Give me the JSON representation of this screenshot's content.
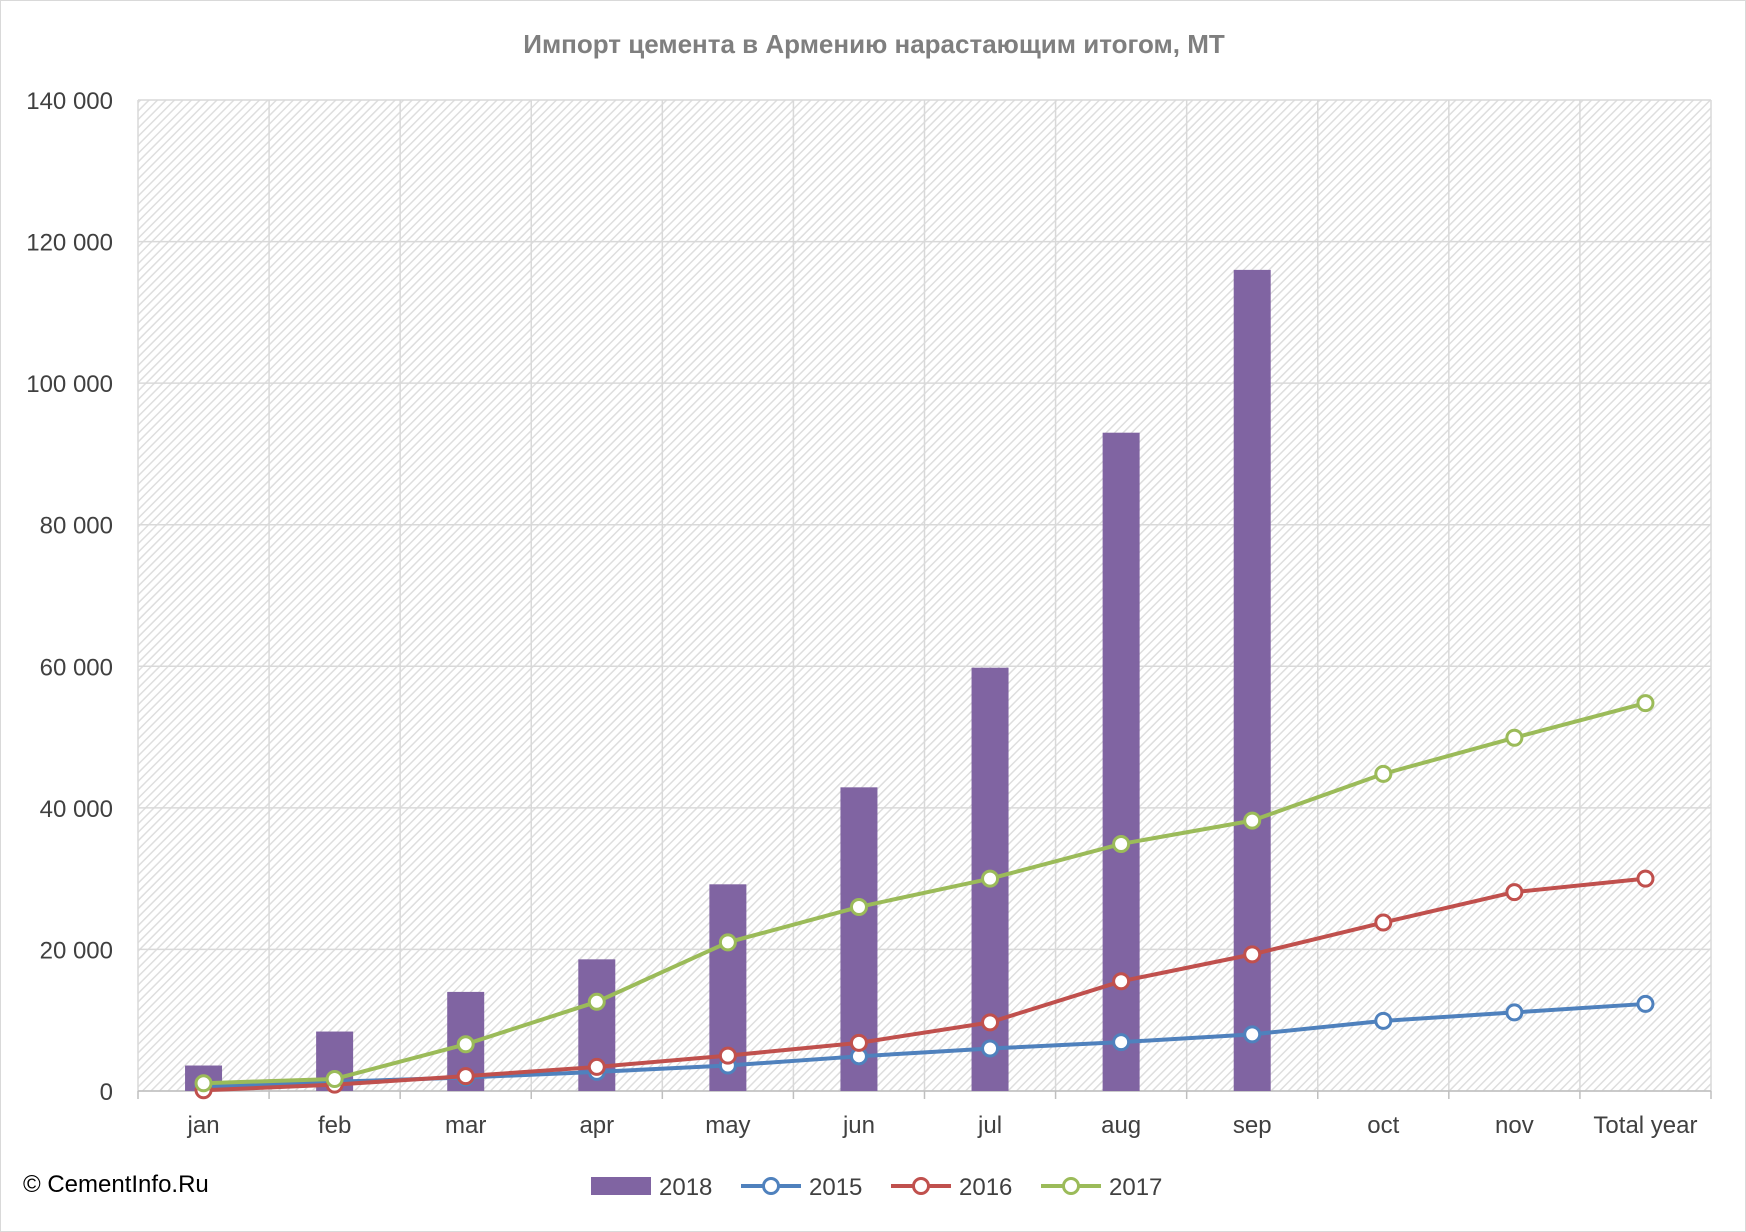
{
  "copyright": "© CementInfo.Ru",
  "chart_data": {
    "type": "bar",
    "title": "Импорт цемента в Армению нарастающим итогом, МТ",
    "xlabel": "",
    "ylabel": "",
    "categories": [
      "jan",
      "feb",
      "mar",
      "apr",
      "may",
      "jun",
      "jul",
      "aug",
      "sep",
      "oct",
      "nov",
      "Total year"
    ],
    "ylim": [
      0,
      140000
    ],
    "yticks": [
      0,
      20000,
      40000,
      60000,
      80000,
      100000,
      120000,
      140000
    ],
    "ytick_labels": [
      "0",
      "20 000",
      "40 000",
      "60 000",
      "80 000",
      "100 000",
      "120 000",
      "140 000"
    ],
    "grid": true,
    "legend_position": "bottom",
    "series": [
      {
        "name": "2018",
        "kind": "bar",
        "color": "#8064a2",
        "values": [
          3600,
          8400,
          14000,
          18600,
          29200,
          42900,
          59800,
          93000,
          116000,
          null,
          null,
          null
        ]
      },
      {
        "name": "2015",
        "kind": "line",
        "color": "#4f81bd",
        "values": [
          600,
          1300,
          1900,
          2700,
          3600,
          4900,
          6000,
          6900,
          8000,
          9900,
          11100,
          12300
        ]
      },
      {
        "name": "2016",
        "kind": "line",
        "color": "#c0504d",
        "values": [
          100,
          900,
          2100,
          3400,
          5000,
          6800,
          9700,
          15500,
          19300,
          23800,
          28100,
          30000
        ]
      },
      {
        "name": "2017",
        "kind": "line",
        "color": "#9bbb59",
        "values": [
          1100,
          1700,
          6600,
          12600,
          21000,
          26000,
          30000,
          34900,
          38200,
          44800,
          49900,
          54800
        ]
      }
    ]
  }
}
